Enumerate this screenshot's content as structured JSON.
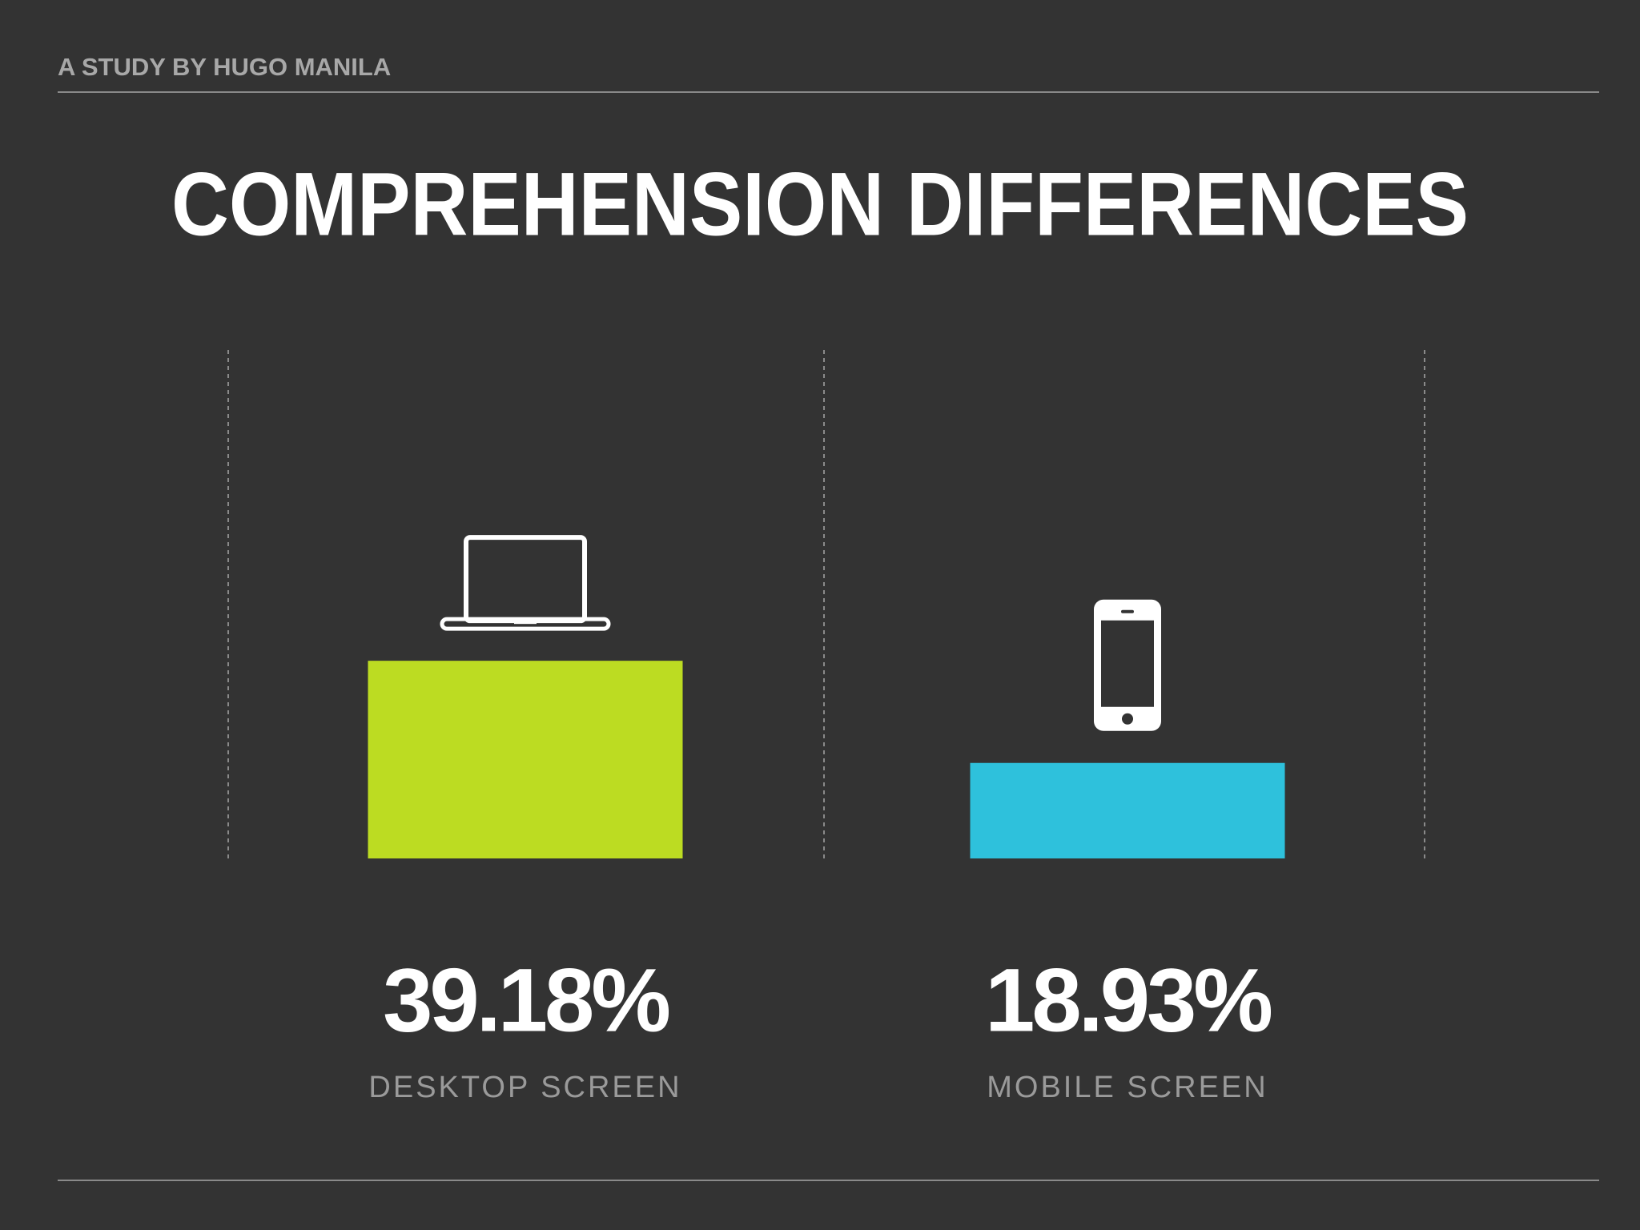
{
  "chart_data": {
    "type": "bar",
    "subtitle": "A STUDY BY HUGO MANILA",
    "title": "COMPREHENSION DIFFERENCES",
    "categories": [
      "DESKTOP SCREEN",
      "MOBILE SCREEN"
    ],
    "values": [
      39.18,
      18.93
    ],
    "value_labels": [
      "39.18%",
      "18.93%"
    ],
    "colors": [
      "#bcdc22",
      "#2ec1dc"
    ]
  }
}
